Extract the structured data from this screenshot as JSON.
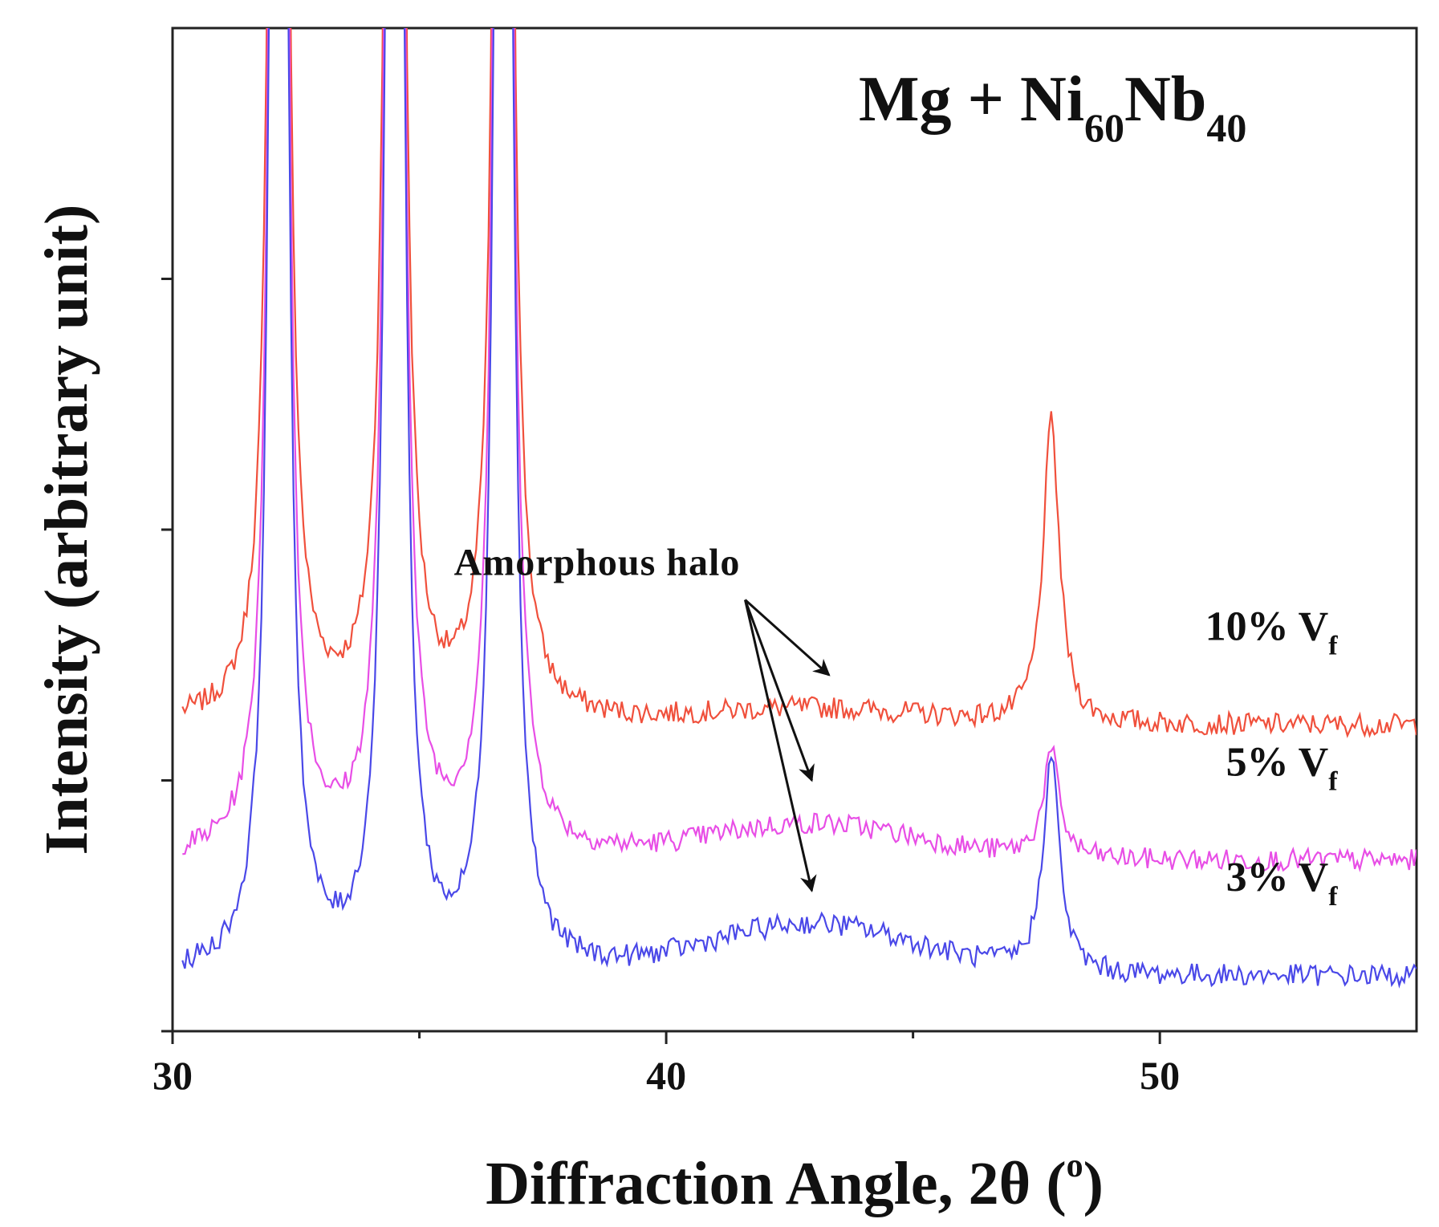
{
  "chart_data": {
    "type": "line",
    "title": "Mg + Ni60Nb40",
    "title_parts": {
      "base": "Mg + Ni",
      "sub1": "60",
      "mid": "Nb",
      "sub2": "40"
    },
    "xlabel": "Diffraction Angle, 2θ (°)",
    "xlabel_parts": {
      "main": "Diffraction Angle, 2θ (",
      "sup": "o",
      "end": ")"
    },
    "ylabel": "Intensity (arbitrary unit)",
    "xlim": [
      30,
      55.2
    ],
    "ylim": [
      0,
      100
    ],
    "x_ticks": [
      "30",
      "40",
      "50"
    ],
    "x_tick_values": [
      30,
      40,
      50
    ],
    "x_minor_ticks": [
      35,
      45
    ],
    "y_tick_values": [
      0,
      25,
      50,
      75
    ],
    "grid": false,
    "peaks": [
      {
        "position": 32.15,
        "width": 0.11,
        "relative_height": 1.0
      },
      {
        "position": 34.5,
        "width": 0.11,
        "relative_height": 1.0
      },
      {
        "position": 36.7,
        "width": 0.11,
        "relative_height": 1.0
      },
      {
        "position": 47.8,
        "width": 0.12,
        "relative_height": 0.55
      }
    ],
    "halo_center": 43.0,
    "series": [
      {
        "name": "10% Vf",
        "label_main": "10% V",
        "label_sub": "f",
        "color": "#f0503c",
        "baseline": 30.5,
        "halo_amplitude": 1.5,
        "peak_48": 30.0
      },
      {
        "name": "5% Vf",
        "label_main": "5% V",
        "label_sub": "f",
        "color": "#e84ee6",
        "baseline": 17.0,
        "halo_amplitude": 3.5,
        "peak_48": 10.5
      },
      {
        "name": "3% Vf",
        "label_main": "3% V",
        "label_sub": "f",
        "color": "#4a48e8",
        "baseline": 5.5,
        "halo_amplitude": 5.0,
        "peak_48": 21.5
      }
    ],
    "annotation": {
      "text": "Amorphous halo",
      "arrow_targets": [
        "10% Vf",
        "5% Vf",
        "3% Vf"
      ]
    }
  }
}
